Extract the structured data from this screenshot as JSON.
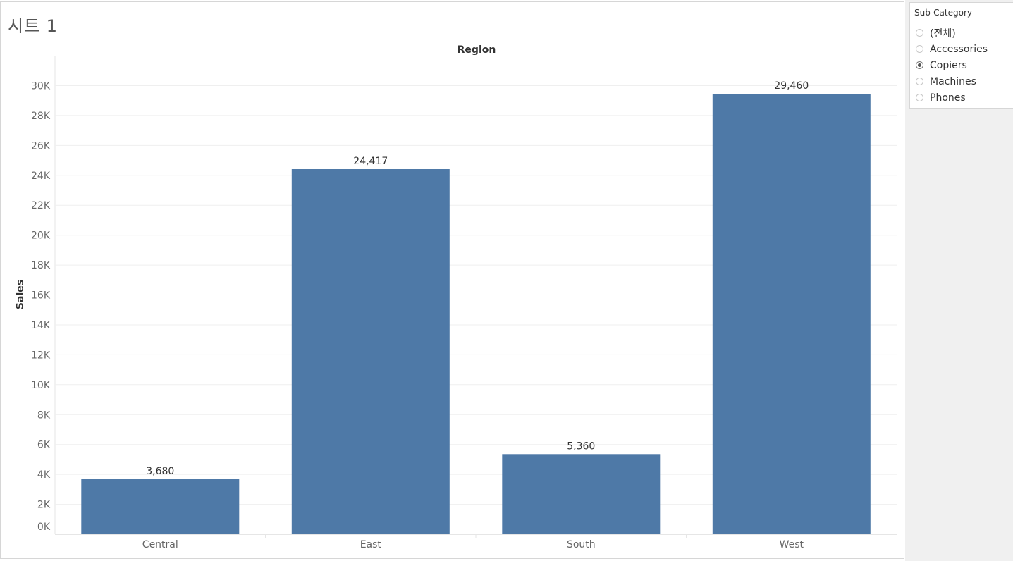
{
  "sheet": {
    "title": "시트 1"
  },
  "filter": {
    "title": "Sub-Category",
    "options": [
      {
        "label": "(전체)",
        "selected": false
      },
      {
        "label": "Accessories",
        "selected": false
      },
      {
        "label": "Copiers",
        "selected": true
      },
      {
        "label": "Machines",
        "selected": false
      },
      {
        "label": "Phones",
        "selected": false
      }
    ]
  },
  "chart_data": {
    "type": "bar",
    "title": "Region",
    "xlabel": "",
    "ylabel": "Sales",
    "categories": [
      "Central",
      "East",
      "South",
      "West"
    ],
    "values": [
      3680,
      24417,
      5360,
      29460
    ],
    "value_labels": [
      "3,680",
      "24,417",
      "5,360",
      "29,460"
    ],
    "ylim": [
      0,
      30000
    ],
    "yticks": [
      0,
      2000,
      4000,
      6000,
      8000,
      10000,
      12000,
      14000,
      16000,
      18000,
      20000,
      22000,
      24000,
      26000,
      28000,
      30000
    ],
    "ytick_labels": [
      "0K",
      "2K",
      "4K",
      "6K",
      "8K",
      "10K",
      "12K",
      "14K",
      "16K",
      "18K",
      "20K",
      "22K",
      "24K",
      "26K",
      "28K",
      "30K"
    ],
    "bar_color": "#4e79a7",
    "grid": true
  }
}
